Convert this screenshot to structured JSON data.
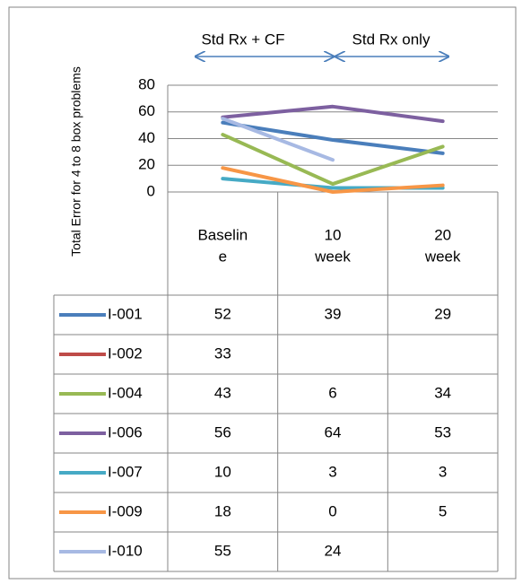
{
  "chart_data": {
    "type": "line",
    "y_label": "Total Error for 4 to 8 box problems",
    "annotations": [
      "Std Rx + CF",
      "Std Rx only"
    ],
    "categories": [
      "Baseline",
      "10 week",
      "20 week"
    ],
    "ylim": [
      0,
      80
    ],
    "yticks": [
      0,
      20,
      40,
      60,
      80
    ],
    "grid": true,
    "series": [
      {
        "name": "I-001",
        "color": "#4a7ebb",
        "values": [
          52,
          39,
          29
        ]
      },
      {
        "name": "I-002",
        "color": "#be4b48",
        "values": [
          33,
          null,
          null
        ]
      },
      {
        "name": "I-004",
        "color": "#98b954",
        "values": [
          43,
          6,
          34
        ]
      },
      {
        "name": "I-006",
        "color": "#7d60a0",
        "values": [
          56,
          64,
          53
        ]
      },
      {
        "name": "I-007",
        "color": "#46aac5",
        "values": [
          10,
          3,
          3
        ]
      },
      {
        "name": "I-009",
        "color": "#f79646",
        "values": [
          18,
          0,
          5
        ]
      },
      {
        "name": "I-010",
        "color": "#a7b9e3",
        "values": [
          55,
          24,
          null
        ]
      }
    ]
  }
}
